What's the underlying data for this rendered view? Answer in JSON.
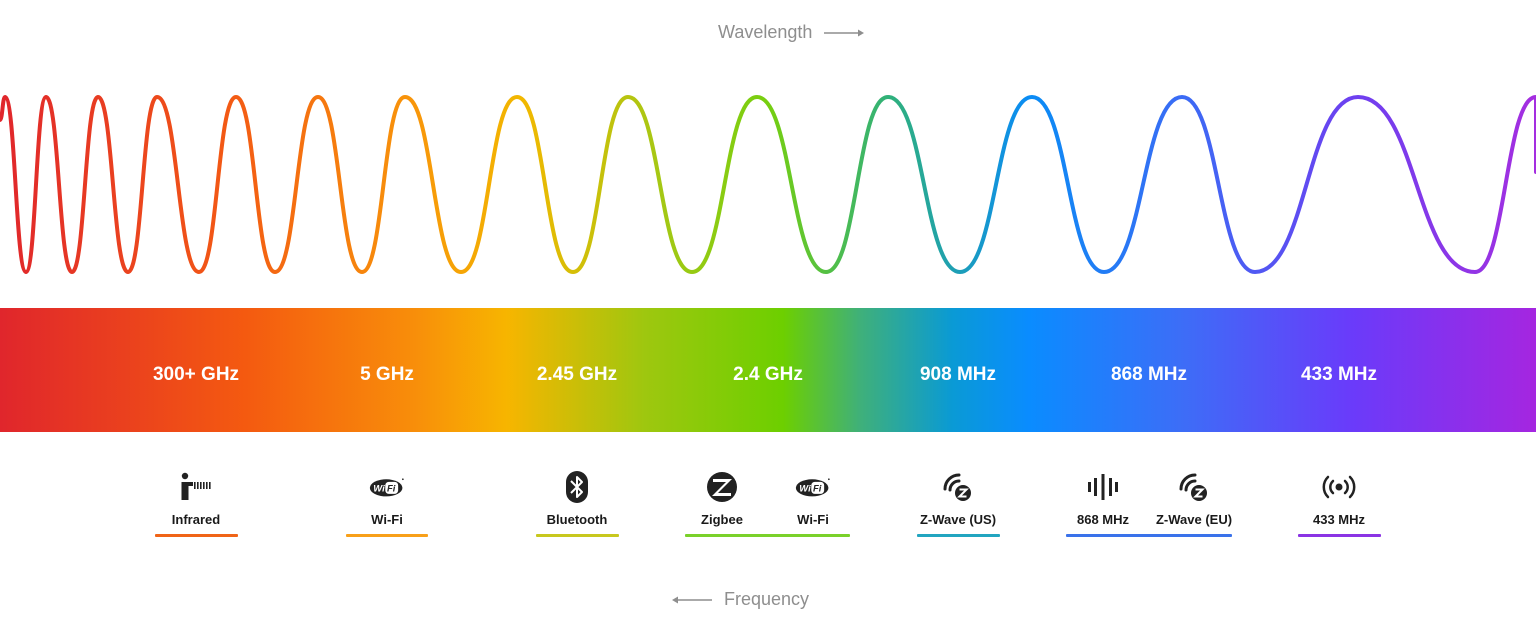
{
  "axes": {
    "wavelength": "Wavelength",
    "frequency": "Frequency"
  },
  "bands": [
    {
      "label": "300+ GHz"
    },
    {
      "label": "5 GHz"
    },
    {
      "label": "2.45 GHz"
    },
    {
      "label": "2.4 GHz"
    },
    {
      "label": "908 MHz"
    },
    {
      "label": "868 MHz"
    },
    {
      "label": "433 MHz"
    }
  ],
  "technologies": [
    {
      "label": "Infrared",
      "icon": "infrared-icon"
    },
    {
      "label": "Wi-Fi",
      "icon": "wifi-icon"
    },
    {
      "label": "Bluetooth",
      "icon": "bluetooth-icon"
    },
    {
      "label": "Zigbee",
      "icon": "zigbee-icon"
    },
    {
      "label": "Wi-Fi",
      "icon": "wifi-icon"
    },
    {
      "label": "Z-Wave (US)",
      "icon": "zwave-icon"
    },
    {
      "label": "868 MHz",
      "icon": "radio-bars-icon"
    },
    {
      "label": "Z-Wave (EU)",
      "icon": "zwave-icon"
    },
    {
      "label": "433 MHz",
      "icon": "broadcast-icon"
    }
  ],
  "colors": {
    "axis_text": "#8e8e8e",
    "underline_infrared": "#f06417",
    "underline_wifi": "#f8a019",
    "underline_bluetooth": "#c8c81e",
    "underline_zigbee_wifi": "#7ad12a",
    "underline_zwave_us": "#22a5c0",
    "underline_868": "#3a72ea",
    "underline_433": "#8b34e4"
  }
}
